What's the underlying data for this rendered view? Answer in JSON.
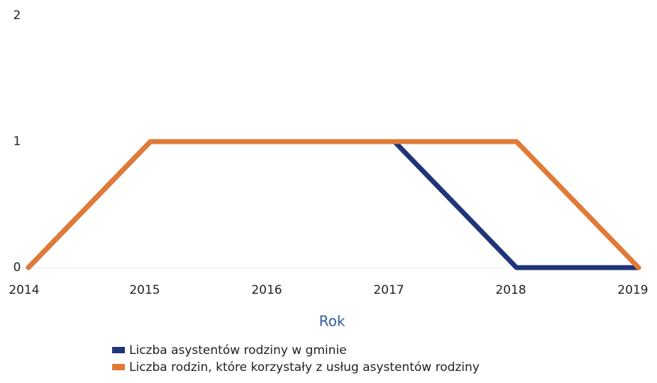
{
  "chart_data": {
    "type": "line",
    "categories": [
      "2014",
      "2015",
      "2016",
      "2017",
      "2018",
      "2019"
    ],
    "series": [
      {
        "name": "Liczba asystentów rodziny w gminie",
        "color": "#1f3577",
        "values": [
          0,
          1,
          1,
          1,
          0,
          0
        ]
      },
      {
        "name": "Liczba rodzin, które korzystały z usług asystentów rodziny",
        "color": "#e07a36",
        "values": [
          0,
          1,
          1,
          1,
          1,
          0
        ]
      }
    ],
    "x_label": "Rok",
    "ylim": [
      0,
      2
    ],
    "yticks": [
      0,
      1,
      2
    ],
    "grid": false,
    "legend": "bottom"
  }
}
